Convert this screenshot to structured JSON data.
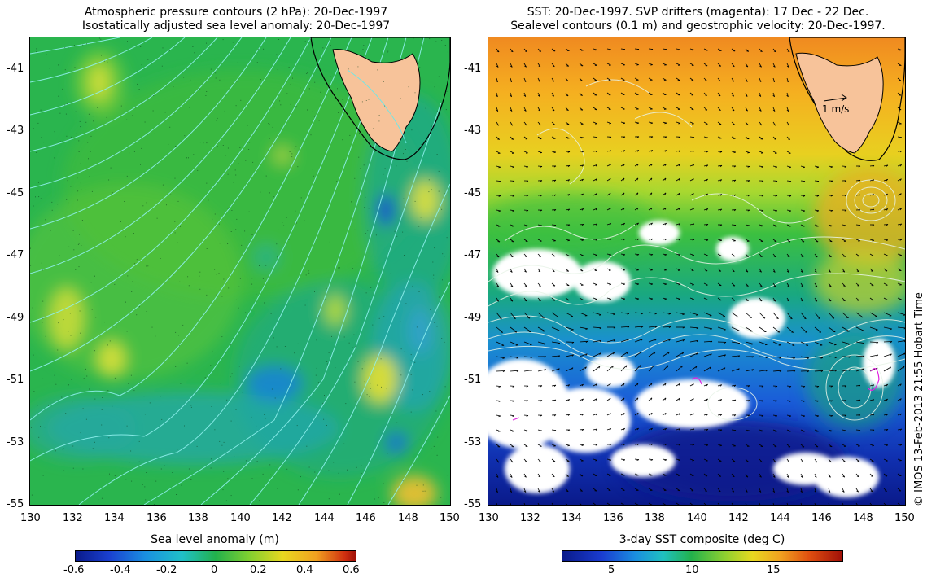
{
  "left_panel": {
    "title_line1": "Atmospheric pressure contours (2 hPa): 20-Dec-1997",
    "title_line2": "Isostatically adjusted sea level anomaly: 20-Dec-1997",
    "y_ticks": [
      "-41",
      "-43",
      "-45",
      "-47",
      "-49",
      "-51",
      "-53",
      "-55"
    ],
    "x_ticks": [
      "130",
      "132",
      "134",
      "136",
      "138",
      "140",
      "142",
      "144",
      "146",
      "148",
      "150"
    ],
    "colorbar_label": "Sea level anomaly (m)",
    "colorbar_ticks": [
      "-0.6",
      "-0.4",
      "-0.2",
      "0",
      "0.2",
      "0.4",
      "0.6"
    ],
    "colorbar_range": [
      -0.6,
      0.6
    ]
  },
  "right_panel": {
    "title_line1": "SST: 20-Dec-1997. SVP drifters (magenta): 17 Dec - 22 Dec.",
    "title_line2": "Sealevel contours (0.1 m) and geostrophic velocity: 20-Dec-1997.",
    "y_ticks": [
      "-41",
      "-43",
      "-45",
      "-47",
      "-49",
      "-51",
      "-53",
      "-55"
    ],
    "x_ticks": [
      "130",
      "132",
      "134",
      "136",
      "138",
      "140",
      "142",
      "144",
      "146",
      "148",
      "150"
    ],
    "velocity_scale_label": "1 m/s",
    "colorbar_label": "3-day SST composite (deg C)",
    "colorbar_ticks": [
      "5",
      "10",
      "15"
    ],
    "colorbar_range": [
      2,
      20
    ]
  },
  "map_extent": {
    "lon": [
      130,
      150
    ],
    "lat": [
      -55,
      -40
    ]
  },
  "credit": "© IMOS 13-Feb-2013 21:55 Hobart Time",
  "colors": {
    "land": "#f7c39a",
    "sla_mid": "#22b14c",
    "pressure_contour": "#7fe3e3",
    "sst_warm": "#f08a20",
    "sst_cold": "#0a1a8a",
    "cloud_mask": "#ffffff"
  }
}
